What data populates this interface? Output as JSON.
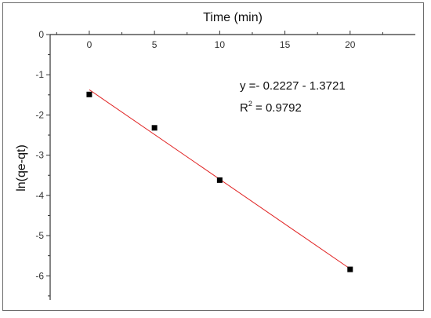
{
  "chart_data": {
    "type": "scatter",
    "xlabel": "Time (min)",
    "ylabel": "ln(qe-qt)",
    "xlim": [
      -3,
      25
    ],
    "ylim": [
      -6.6,
      0
    ],
    "x_ticks": [
      0,
      5,
      10,
      15,
      20
    ],
    "y_ticks": [
      0,
      -1,
      -2,
      -3,
      -4,
      -5,
      -6
    ],
    "x_axis_position": "top",
    "grid": false,
    "points": [
      {
        "x": 0,
        "y": -1.49
      },
      {
        "x": 5,
        "y": -2.32
      },
      {
        "x": 10,
        "y": -3.62
      },
      {
        "x": 20,
        "y": -5.84
      }
    ],
    "fit_line": {
      "slope": -0.2227,
      "intercept": -1.3721,
      "x_range": [
        0,
        20
      ],
      "color": "#e02020"
    },
    "annotations": {
      "equation": "y =- 0.2227 - 1.3721",
      "r2_label": "R",
      "r2_sup": "2",
      "r2_value": " = 0.9792"
    },
    "marker_color": "#000000"
  }
}
